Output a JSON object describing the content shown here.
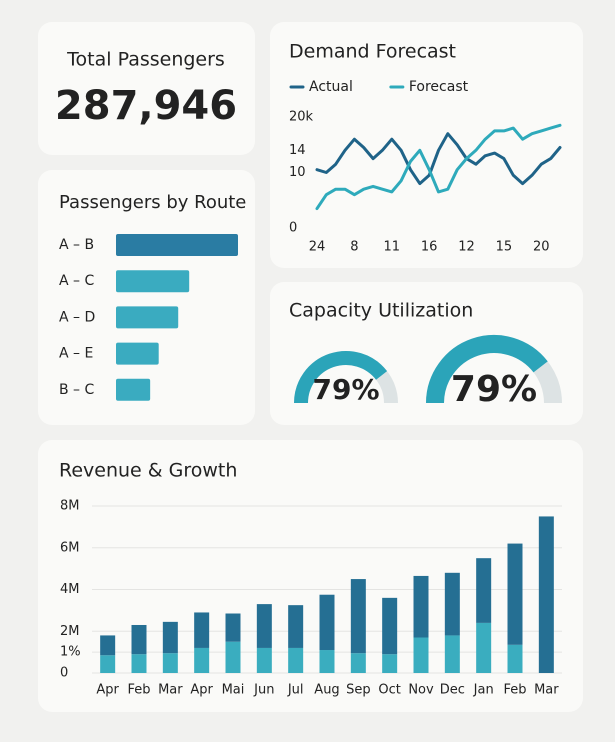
{
  "kpi": {
    "title": "Total Passengers",
    "value": "287,946"
  },
  "chart_data": [
    {
      "type": "line",
      "title": "Demand Forecast",
      "categories": [
        "24",
        null,
        null,
        null,
        "8",
        null,
        null,
        null,
        "11",
        null,
        null,
        null,
        "16",
        null,
        null,
        null,
        "12",
        null,
        null,
        null,
        "15",
        null,
        null,
        null,
        "20",
        null,
        null
      ],
      "series": [
        {
          "name": "Actual",
          "color": "#1f6388",
          "values": [
            10.5,
            10,
            11.5,
            14,
            16,
            14.5,
            12.5,
            14,
            16,
            14,
            10.5,
            8,
            9.5,
            14,
            17,
            15,
            12.5,
            11.5,
            13,
            13.5,
            12.5,
            9.5,
            8,
            9.5,
            11.5,
            12.5,
            14.5
          ]
        },
        {
          "name": "Forecast",
          "color": "#2eaabb",
          "values": [
            3.5,
            6,
            7,
            7,
            6,
            7,
            7.5,
            7,
            6.5,
            8.5,
            12,
            14,
            10.5,
            6.5,
            7,
            10.5,
            12.5,
            14,
            16,
            17.5,
            17.5,
            18,
            16,
            17,
            17.5,
            18,
            18.5
          ]
        }
      ],
      "ylim": [
        0,
        20
      ],
      "yticks": [
        0,
        10,
        14,
        {
          "value": 20,
          "label": "20k"
        }
      ]
    },
    {
      "type": "hbar",
      "title": "Passengers by Route",
      "categories": [
        "A – B",
        "A – C",
        "A – D",
        "A – E",
        "B – C"
      ],
      "values": [
        100,
        60,
        51,
        35,
        28
      ],
      "colors": [
        "#2a7ca3",
        "#3aabc0",
        "#3aabc0",
        "#3aabc0",
        "#3aabc0"
      ]
    },
    {
      "type": "gauge",
      "title": "Capacity Utilization",
      "values": [
        79,
        79
      ],
      "value_labels": [
        "79%",
        "79%"
      ],
      "color": "#2ba4b9",
      "track_color": "#dde3e4"
    },
    {
      "type": "stacked-bar",
      "title": "Revenue & Growth",
      "categories": [
        "Apr",
        "Feb",
        "Mar",
        "Apr",
        "Mai",
        "Jun",
        "Jul",
        "Aug",
        "Sep",
        "Oct",
        "Nov",
        "Dec",
        "Jan",
        "Feb",
        "Mar"
      ],
      "series": [
        {
          "color": "#3aadbf",
          "values": [
            0.85,
            0.9,
            0.95,
            1.2,
            1.5,
            1.2,
            1.2,
            1.1,
            0.95,
            0.9,
            1.7,
            1.8,
            2.4,
            1.35,
            0
          ]
        },
        {
          "color": "#256f93",
          "values": [
            0.95,
            1.4,
            1.5,
            1.7,
            1.35,
            2.1,
            2.05,
            2.65,
            3.55,
            2.7,
            2.95,
            3.0,
            3.1,
            4.85,
            7.5
          ]
        }
      ],
      "ylim": [
        0,
        8
      ],
      "yticks": [
        0,
        {
          "value": 1,
          "label": "1%"
        },
        {
          "value": 2,
          "label": "2M"
        },
        {
          "value": 4,
          "label": "4M"
        },
        {
          "value": 6,
          "label": "6M"
        },
        {
          "value": 8,
          "label": "8M"
        }
      ],
      "grid": true
    }
  ]
}
